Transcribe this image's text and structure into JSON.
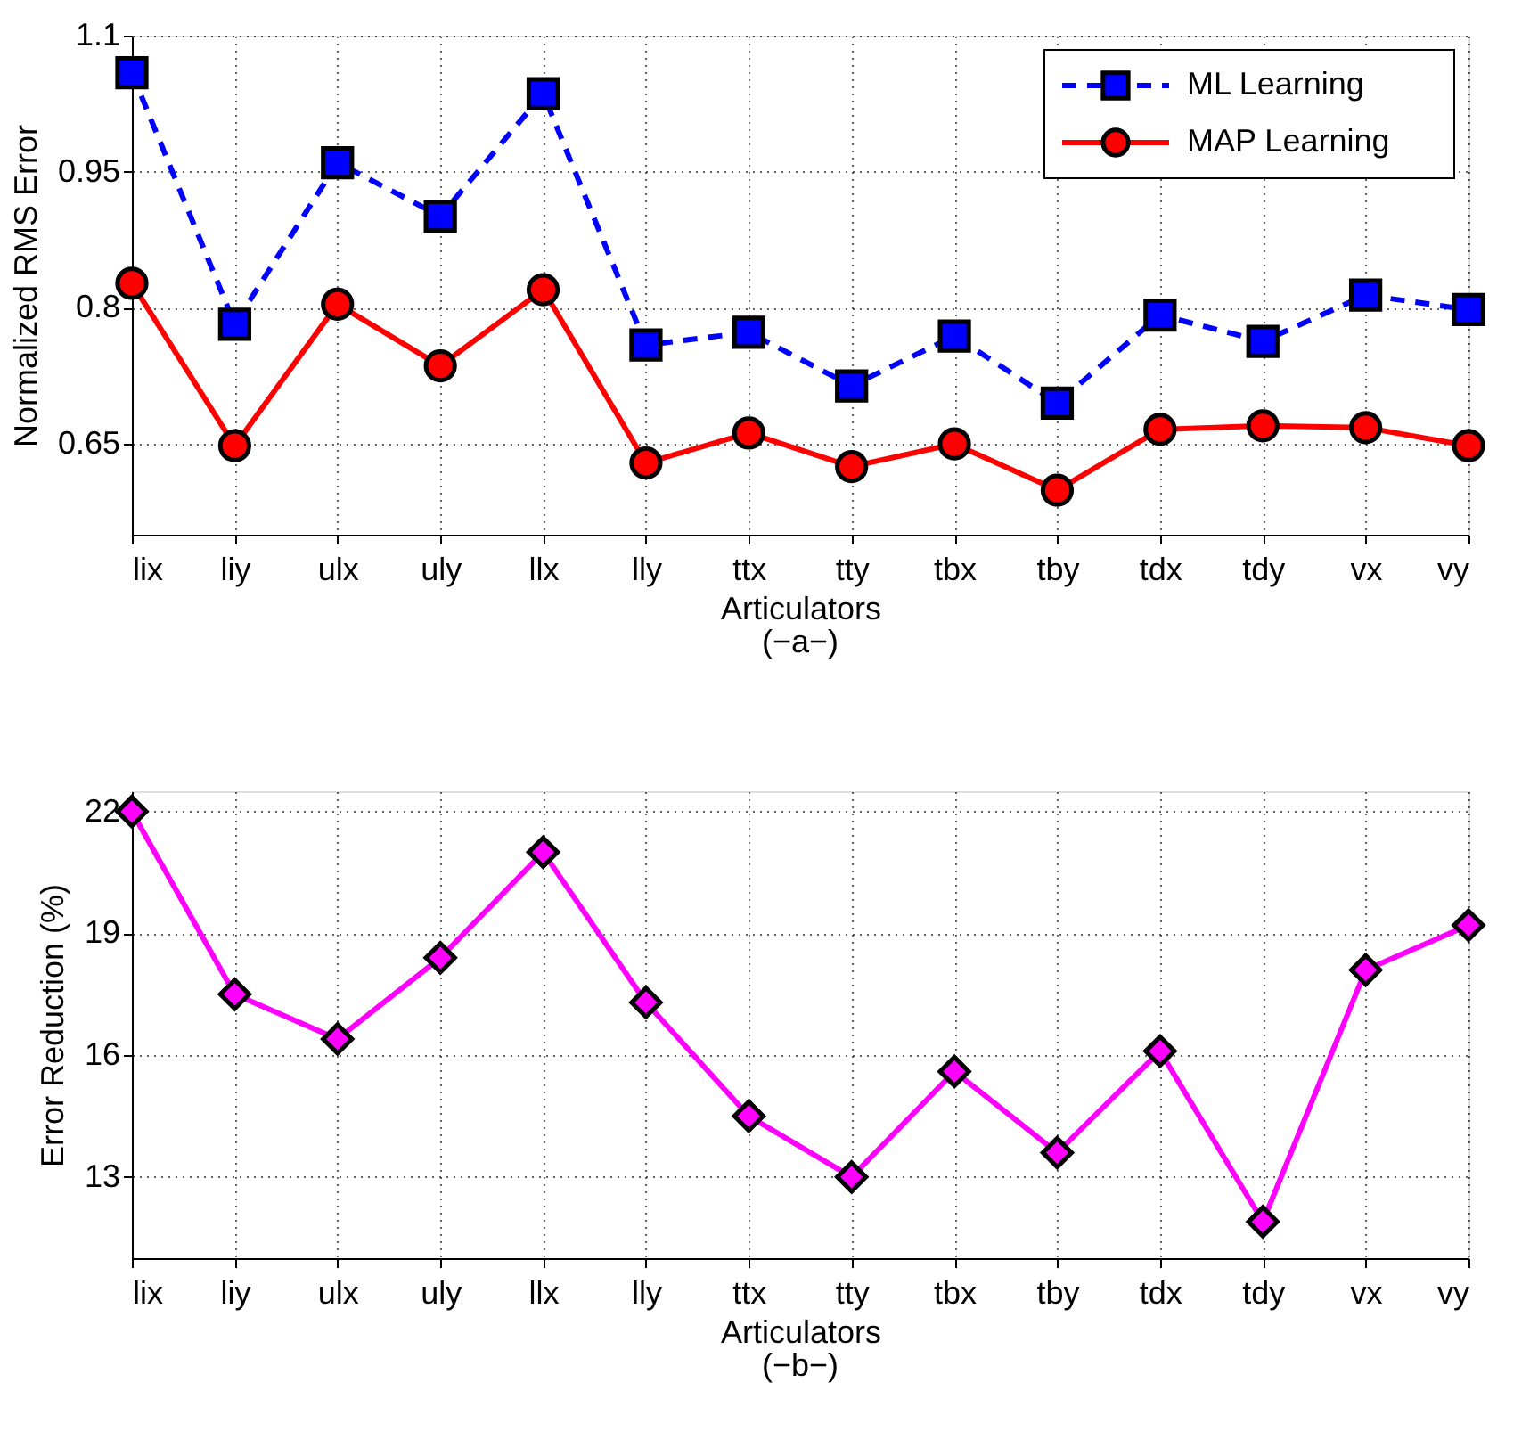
{
  "chart_data": [
    {
      "type": "line",
      "xlabel": "Articulators",
      "ylabel": "Normalized RMS Error",
      "annotations": [
        "(−a−)"
      ],
      "categories": [
        "lix",
        "liy",
        "ulx",
        "uly",
        "llx",
        "lly",
        "ttx",
        "tty",
        "tbx",
        "tby",
        "tdx",
        "tdy",
        "vx",
        "vy"
      ],
      "ylim": [
        0.55,
        1.1
      ],
      "yticks": [
        0.65,
        0.8,
        0.95,
        1.1
      ],
      "grid": true,
      "legend": "top right",
      "series": [
        {
          "name": "ML Learning",
          "color": "#0000ff",
          "marker": "square",
          "line_style": "dashed",
          "values": [
            1.059,
            0.782,
            0.96,
            0.901,
            1.036,
            0.759,
            0.773,
            0.714,
            0.769,
            0.695,
            0.792,
            0.763,
            0.814,
            0.798
          ]
        },
        {
          "name": "MAP Learning",
          "color": "#ff0000",
          "marker": "circle",
          "line_style": "solid",
          "values": [
            0.827,
            0.648,
            0.804,
            0.736,
            0.82,
            0.629,
            0.662,
            0.625,
            0.65,
            0.599,
            0.666,
            0.67,
            0.668,
            0.648
          ]
        }
      ]
    },
    {
      "type": "line",
      "xlabel": "Articulators",
      "ylabel": "Error Reduction (%)",
      "annotations": [
        "(−b−)"
      ],
      "categories": [
        "lix",
        "liy",
        "ulx",
        "uly",
        "llx",
        "lly",
        "ttx",
        "tty",
        "tbx",
        "tby",
        "tdx",
        "tdy",
        "vx",
        "vy"
      ],
      "ylim": [
        11,
        22.5
      ],
      "yticks": [
        13,
        16,
        19,
        22
      ],
      "grid": true,
      "series": [
        {
          "color": "#ff00ff",
          "marker": "diamond",
          "line_style": "solid",
          "values": [
            22.0,
            17.5,
            16.4,
            18.4,
            21.0,
            17.3,
            14.5,
            13.0,
            15.6,
            13.6,
            16.1,
            11.9,
            18.1,
            19.2
          ]
        }
      ]
    }
  ]
}
